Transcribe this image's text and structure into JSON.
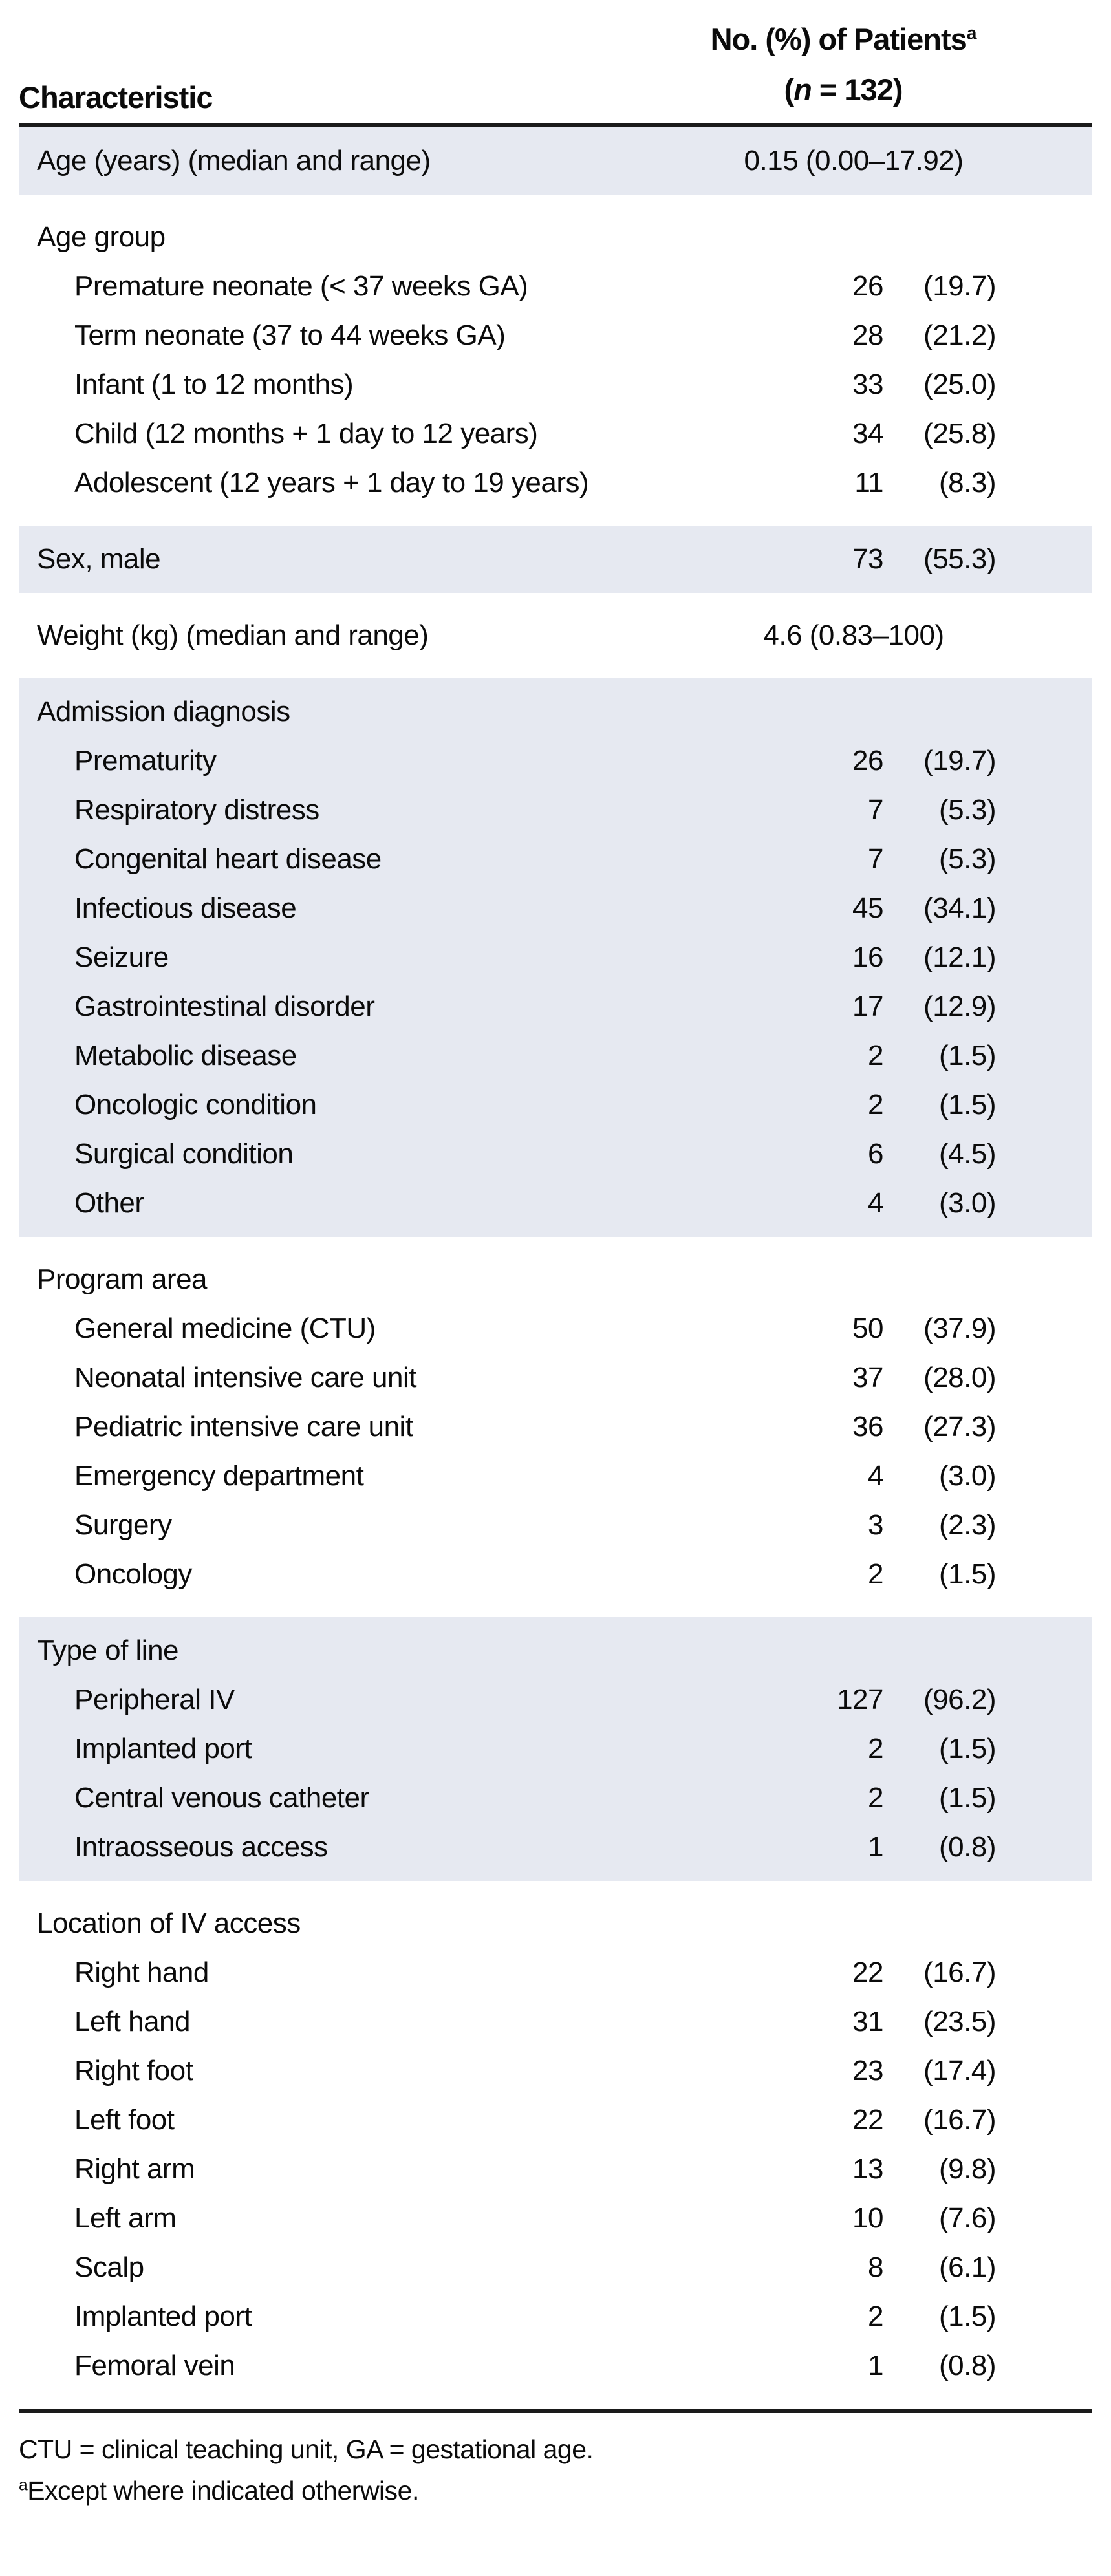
{
  "colors": {
    "row_shade": "#e6e9f1",
    "rule": "#1a1a1a",
    "text": "#0b0b0b"
  },
  "header": {
    "col1": "Characteristic",
    "col2_title": "No. (%) of Patients",
    "col2_sup": "a",
    "n_open": "(",
    "n_italic": "n",
    "n_rest": " = 132)"
  },
  "sections": [
    {
      "kind": "median",
      "shaded": true,
      "label": "Age (years) (median and range)",
      "value": "0.15 (0.00–17.92)"
    },
    {
      "kind": "group",
      "shaded": false,
      "title": "Age group",
      "rows": [
        {
          "label": "Premature neonate (< 37 weeks GA)",
          "n": "26",
          "pct": "(19.7)"
        },
        {
          "label": "Term neonate (37 to 44 weeks GA)",
          "n": "28",
          "pct": "(21.2)"
        },
        {
          "label": "Infant (1 to 12 months)",
          "n": "33",
          "pct": "(25.0)"
        },
        {
          "label": "Child (12 months + 1 day to 12 years)",
          "n": "34",
          "pct": "(25.8)"
        },
        {
          "label": "Adolescent (12 years + 1 day to 19 years)",
          "n": "11",
          "pct": "(8.3)"
        }
      ]
    },
    {
      "kind": "count",
      "shaded": true,
      "label": "Sex, male",
      "n": "73",
      "pct": "(55.3)"
    },
    {
      "kind": "median",
      "shaded": false,
      "label": "Weight (kg) (median and range)",
      "value": "4.6 (0.83–100)"
    },
    {
      "kind": "group",
      "shaded": true,
      "title": "Admission diagnosis",
      "rows": [
        {
          "label": "Prematurity",
          "n": "26",
          "pct": "(19.7)"
        },
        {
          "label": "Respiratory distress",
          "n": "7",
          "pct": "(5.3)"
        },
        {
          "label": "Congenital heart disease",
          "n": "7",
          "pct": "(5.3)"
        },
        {
          "label": "Infectious disease",
          "n": "45",
          "pct": "(34.1)"
        },
        {
          "label": "Seizure",
          "n": "16",
          "pct": "(12.1)"
        },
        {
          "label": "Gastrointestinal disorder",
          "n": "17",
          "pct": "(12.9)"
        },
        {
          "label": "Metabolic disease",
          "n": "2",
          "pct": "(1.5)"
        },
        {
          "label": "Oncologic condition",
          "n": "2",
          "pct": "(1.5)"
        },
        {
          "label": "Surgical condition",
          "n": "6",
          "pct": "(4.5)"
        },
        {
          "label": "Other",
          "n": "4",
          "pct": "(3.0)"
        }
      ]
    },
    {
      "kind": "group",
      "shaded": false,
      "title": "Program area",
      "rows": [
        {
          "label": "General medicine (CTU)",
          "n": "50",
          "pct": "(37.9)"
        },
        {
          "label": "Neonatal intensive care unit",
          "n": "37",
          "pct": "(28.0)"
        },
        {
          "label": "Pediatric intensive care unit",
          "n": "36",
          "pct": "(27.3)"
        },
        {
          "label": "Emergency department",
          "n": "4",
          "pct": "(3.0)"
        },
        {
          "label": "Surgery",
          "n": "3",
          "pct": "(2.3)"
        },
        {
          "label": "Oncology",
          "n": "2",
          "pct": "(1.5)"
        }
      ]
    },
    {
      "kind": "group",
      "shaded": true,
      "title": "Type of line",
      "rows": [
        {
          "label": "Peripheral IV",
          "n": "127",
          "pct": "(96.2)"
        },
        {
          "label": "Implanted port",
          "n": "2",
          "pct": "(1.5)"
        },
        {
          "label": "Central venous catheter",
          "n": "2",
          "pct": "(1.5)"
        },
        {
          "label": "Intraosseous access",
          "n": "1",
          "pct": "(0.8)"
        }
      ]
    },
    {
      "kind": "group",
      "shaded": false,
      "title": "Location of IV access",
      "rows": [
        {
          "label": "Right hand",
          "n": "22",
          "pct": "(16.7)"
        },
        {
          "label": "Left hand",
          "n": "31",
          "pct": "(23.5)"
        },
        {
          "label": "Right foot",
          "n": "23",
          "pct": "(17.4)"
        },
        {
          "label": "Left foot",
          "n": "22",
          "pct": "(16.7)"
        },
        {
          "label": "Right arm",
          "n": "13",
          "pct": "(9.8)"
        },
        {
          "label": "Left arm",
          "n": "10",
          "pct": "(7.6)"
        },
        {
          "label": "Scalp",
          "n": "8",
          "pct": "(6.1)"
        },
        {
          "label": "Implanted port",
          "n": "2",
          "pct": "(1.5)"
        },
        {
          "label": "Femoral vein",
          "n": "1",
          "pct": "(0.8)"
        }
      ]
    }
  ],
  "footnotes": {
    "line1": "CTU = clinical teaching unit, GA = gestational age.",
    "line2_sup": "a",
    "line2": "Except where indicated otherwise."
  }
}
